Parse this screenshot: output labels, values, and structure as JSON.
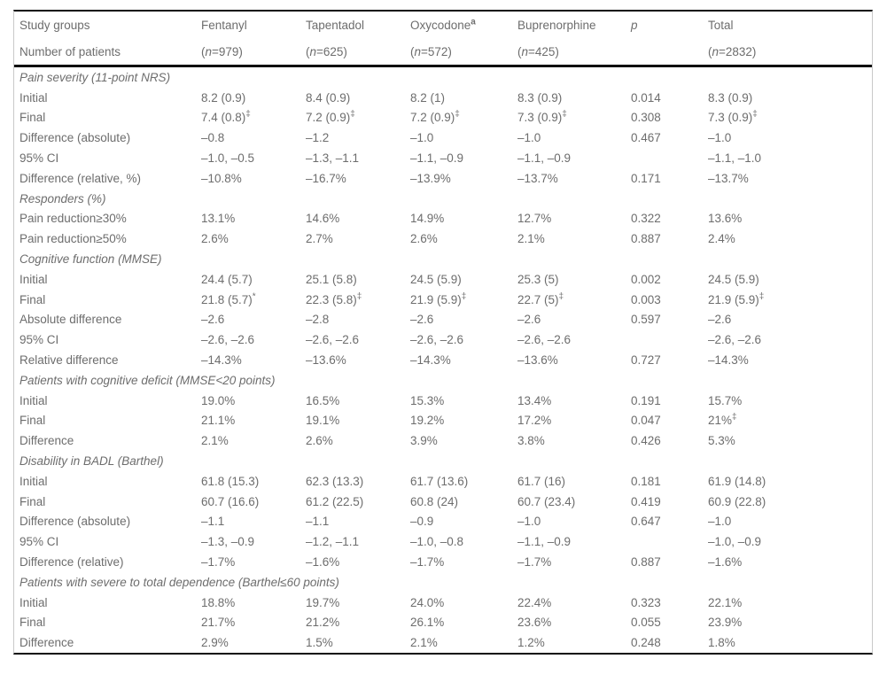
{
  "colors": {
    "text": "#6d6d6d",
    "rule": "#0a0a0a",
    "frame": "#c9c9c9",
    "background": "#ffffff"
  },
  "table": {
    "columns": [
      {
        "label": "Study groups"
      },
      {
        "label": "Fentanyl"
      },
      {
        "label": "Tapentadol"
      },
      {
        "label": "Oxycodone",
        "sup": "a"
      },
      {
        "label": "Buprenorphine"
      },
      {
        "label": "p",
        "italic": true
      },
      {
        "label": "Total"
      }
    ],
    "subheader": [
      "Number of patients",
      "(n=979)",
      "(n=625)",
      "(n=572)",
      "(n=425)",
      "",
      "(n=2832)"
    ],
    "sections": [
      {
        "title": "Pain severity (11-point NRS)",
        "rows": [
          {
            "label": "Initial",
            "cells": [
              "8.2 (0.9)",
              "8.4 (0.9)",
              "8.2 (1)",
              "8.3 (0.9)",
              "0.014",
              "8.3 (0.9)"
            ]
          },
          {
            "label": "Final",
            "cells": [
              "7.4 (0.8)^‡",
              "7.2 (0.9)^‡",
              "7.2 (0.9)^‡",
              "7.3 (0.9)^‡",
              "0.308",
              "7.3 (0.9)^‡"
            ]
          },
          {
            "label": "Difference (absolute)",
            "cells": [
              "–0.8",
              "–1.2",
              "–1.0",
              "–1.0",
              "0.467",
              "–1.0"
            ]
          },
          {
            "label": "95% CI",
            "cells": [
              "–1.0, –0.5",
              "–1.3, –1.1",
              "–1.1, –0.9",
              "–1.1, –0.9",
              "",
              "–1.1, –1.0"
            ]
          },
          {
            "label": "Difference (relative, %)",
            "cells": [
              "–10.8%",
              "–16.7%",
              "–13.9%",
              "–13.7%",
              "0.171",
              "–13.7%"
            ]
          }
        ]
      },
      {
        "title": "Responders (%)",
        "rows": [
          {
            "label": "Pain reduction≥30%",
            "cells": [
              "13.1%",
              "14.6%",
              "14.9%",
              "12.7%",
              "0.322",
              "13.6%"
            ]
          },
          {
            "label": "Pain reduction≥50%",
            "cells": [
              "2.6%",
              "2.7%",
              "2.6%",
              "2.1%",
              "0.887",
              "2.4%"
            ]
          }
        ]
      },
      {
        "title": "Cognitive function (MMSE)",
        "rows": [
          {
            "label": "Initial",
            "cells": [
              "24.4 (5.7)",
              "25.1 (5.8)",
              "24.5 (5.9)",
              "25.3 (5)",
              "0.002",
              "24.5 (5.9)"
            ]
          },
          {
            "label": "Final",
            "cells": [
              "21.8 (5.7)^*",
              "22.3 (5.8)^‡",
              "21.9 (5.9)^‡",
              "22.7 (5)^‡",
              "0.003",
              "21.9 (5.9)^‡"
            ]
          },
          {
            "label": "Absolute difference",
            "cells": [
              "–2.6",
              "–2.8",
              "–2.6",
              "–2.6",
              "0.597",
              "–2.6"
            ]
          },
          {
            "label": "95% CI",
            "cells": [
              "–2.6, –2.6",
              "–2.6, –2.6",
              "–2.6, –2.6",
              "–2.6, –2.6",
              "",
              "–2.6, –2.6"
            ]
          },
          {
            "label": "Relative difference",
            "cells": [
              "–14.3%",
              "–13.6%",
              "–14.3%",
              "–13.6%",
              "0.727",
              "–14.3%"
            ]
          }
        ]
      },
      {
        "title": "Patients with cognitive deficit (MMSE<20 points)",
        "rows": [
          {
            "label": "Initial",
            "cells": [
              "19.0%",
              "16.5%",
              "15.3%",
              "13.4%",
              "0.191",
              "15.7%"
            ]
          },
          {
            "label": "Final",
            "cells": [
              "21.1%",
              "19.1%",
              "19.2%",
              "17.2%",
              "0.047",
              "21%^‡"
            ]
          },
          {
            "label": "Difference",
            "cells": [
              "2.1%",
              "2.6%",
              "3.9%",
              "3.8%",
              "0.426",
              "5.3%"
            ]
          }
        ]
      },
      {
        "title": "Disability in BADL (Barthel)",
        "rows": [
          {
            "label": "Initial",
            "cells": [
              "61.8 (15.3)",
              "62.3 (13.3)",
              "61.7 (13.6)",
              "61.7 (16)",
              "0.181",
              "61.9 (14.8)"
            ]
          },
          {
            "label": "Final",
            "cells": [
              "60.7 (16.6)",
              "61.2 (22.5)",
              "60.8 (24)",
              "60.7 (23.4)",
              "0.419",
              "60.9 (22.8)"
            ]
          },
          {
            "label": "Difference (absolute)",
            "cells": [
              "–1.1",
              "–1.1",
              "–0.9",
              "–1.0",
              "0.647",
              "–1.0"
            ]
          },
          {
            "label": "95% CI",
            "cells": [
              "–1.3, –0.9",
              "–1.2, –1.1",
              "–1.0, –0.8",
              "–1.1, –0.9",
              "",
              "–1.0, –0.9"
            ]
          },
          {
            "label": "Difference (relative)",
            "cells": [
              "–1.7%",
              "–1.6%",
              "–1.7%",
              "–1.7%",
              "0.887",
              "–1.6%"
            ]
          }
        ]
      },
      {
        "title": "Patients with severe to total dependence (Barthel≤60 points)",
        "rows": [
          {
            "label": "Initial",
            "cells": [
              "18.8%",
              "19.7%",
              "24.0%",
              "22.4%",
              "0.323",
              "22.1%"
            ]
          },
          {
            "label": "Final",
            "cells": [
              "21.7%",
              "21.2%",
              "26.1%",
              "23.6%",
              "0.055",
              "23.9%"
            ]
          },
          {
            "label": "Difference",
            "cells": [
              "2.9%",
              "1.5%",
              "2.1%",
              "1.2%",
              "0.248",
              "1.8%"
            ]
          }
        ]
      }
    ]
  }
}
